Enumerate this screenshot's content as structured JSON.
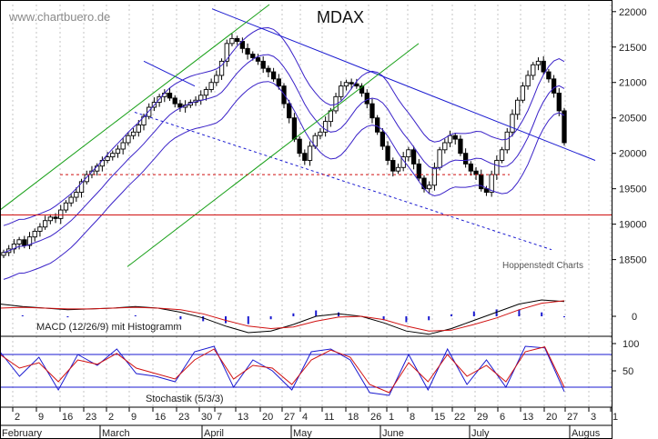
{
  "watermark": "www.chartbuero.de",
  "source_note": "Hoppenstedt Charts",
  "colors": {
    "price_line": "#000000",
    "bollinger": "#3a22c8",
    "trend_down": "#1a1ad0",
    "trend_up_green": "#18a018",
    "support_red": "#d01010",
    "macd_line": "#000000",
    "signal_line": "#d01010",
    "histogram": "#1a1ad0",
    "stoch_k": "#1a1ad0",
    "stoch_d": "#d01010",
    "grid": "#b8b8b8"
  },
  "chart_data": [
    {
      "type": "candlestick",
      "title": "MDAX",
      "y_ticks": [
        "22000",
        "21500",
        "21000",
        "20500",
        "20000",
        "19500",
        "19000",
        "18500"
      ],
      "ylim": [
        18200,
        22100
      ],
      "x_day_labels": [
        "2",
        "9",
        "16",
        "23",
        "2",
        "9",
        "16",
        "23",
        "30",
        "7",
        "13",
        "20",
        "27",
        "4",
        "11",
        "18",
        "26",
        "1",
        "8",
        "15",
        "22",
        "29",
        "6",
        "13",
        "20",
        "27",
        "3",
        "1"
      ],
      "x_month_labels": [
        "February",
        "March",
        "April",
        "May",
        "June",
        "July",
        "Augus"
      ],
      "close_series": [
        18600,
        18650,
        18720,
        18780,
        18700,
        18820,
        18900,
        18960,
        19050,
        19100,
        19080,
        19200,
        19300,
        19380,
        19450,
        19600,
        19700,
        19750,
        19820,
        19900,
        19950,
        20000,
        20060,
        20150,
        20250,
        20300,
        20400,
        20520,
        20650,
        20720,
        20800,
        20850,
        20780,
        20700,
        20650,
        20680,
        20720,
        20750,
        20820,
        20900,
        21000,
        21100,
        21300,
        21550,
        21620,
        21580,
        21480,
        21400,
        21350,
        21300,
        21200,
        21150,
        21050,
        20950,
        20700,
        20500,
        20200,
        20000,
        19900,
        20100,
        20250,
        20300,
        20450,
        20600,
        20800,
        20950,
        21000,
        20980,
        20950,
        20850,
        20700,
        20500,
        20300,
        20100,
        19900,
        19750,
        19800,
        19950,
        20050,
        19850,
        19650,
        19500,
        19550,
        19800,
        20050,
        20150,
        20250,
        20200,
        20000,
        19850,
        19750,
        19700,
        19500,
        19450,
        19700,
        19900,
        20050,
        20300,
        20550,
        20750,
        20950,
        21100,
        21250,
        21300,
        21150,
        21050,
        20850,
        20600,
        20150
      ],
      "indicators": [
        "Bollinger bands",
        "Trend channel lines",
        "Support line"
      ]
    },
    {
      "type": "line",
      "label": "MACD (12/26/9) mit Histogramm",
      "y_ticks": [
        "0"
      ],
      "series": [
        {
          "name": "MACD",
          "values": [
            0.15,
            0.12,
            0.1,
            0.08,
            0.09,
            0.1,
            0.12,
            0.1,
            0.05,
            -0.02,
            -0.12,
            -0.2,
            -0.18,
            -0.1,
            0.0,
            0.03,
            0.0,
            -0.08,
            -0.18,
            -0.22,
            -0.15,
            -0.05,
            0.05,
            0.15,
            0.2,
            0.18
          ]
        },
        {
          "name": "Signal",
          "values": [
            0.1,
            0.11,
            0.1,
            0.09,
            0.09,
            0.1,
            0.11,
            0.1,
            0.08,
            0.03,
            -0.05,
            -0.12,
            -0.15,
            -0.13,
            -0.06,
            -0.01,
            0.0,
            -0.04,
            -0.12,
            -0.18,
            -0.17,
            -0.1,
            -0.02,
            0.08,
            0.16,
            0.19
          ]
        }
      ]
    },
    {
      "type": "line",
      "label": "Stochastik (5/3/3)",
      "y_ticks": [
        "100",
        "50"
      ],
      "reference_levels": [
        80,
        20
      ],
      "series": [
        {
          "name": "%K",
          "values": [
            85,
            40,
            75,
            15,
            80,
            60,
            90,
            45,
            40,
            30,
            85,
            95,
            20,
            70,
            50,
            15,
            85,
            90,
            70,
            10,
            5,
            80,
            15,
            90,
            25,
            70,
            20,
            95,
            92,
            12
          ]
        },
        {
          "name": "%D",
          "values": [
            80,
            55,
            65,
            30,
            70,
            62,
            82,
            55,
            45,
            35,
            70,
            90,
            35,
            60,
            55,
            25,
            70,
            88,
            75,
            25,
            10,
            65,
            30,
            80,
            40,
            60,
            30,
            85,
            94,
            20
          ]
        }
      ]
    }
  ]
}
